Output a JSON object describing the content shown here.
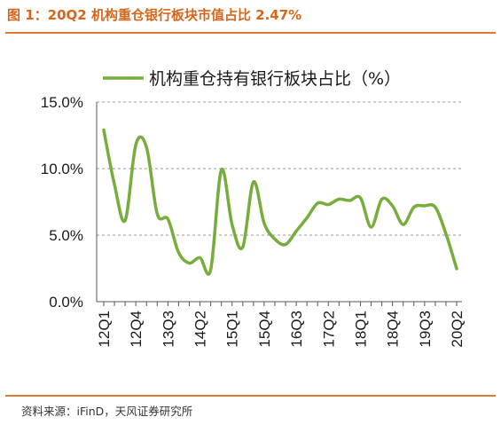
{
  "figure_title": "图 1：20Q2 机构重仓银行板块市值占比 2.47%",
  "source_note": "资料来源：iFinD，天风证券研究所",
  "colors": {
    "line": "#76ad3c",
    "accent": "#e07a2e",
    "title": "#d5661c",
    "grid": "#9a9a9a",
    "axis": "#555555"
  },
  "chart_data": {
    "type": "line",
    "title": "",
    "xlabel": "",
    "ylabel": "",
    "ylim": [
      0,
      15
    ],
    "y_ticks": [
      "0.0%",
      "5.0%",
      "10.0%",
      "15.0%"
    ],
    "grid": true,
    "legend_position": "top",
    "x_tick_labels": [
      "12Q1",
      "12Q4",
      "13Q3",
      "14Q2",
      "15Q1",
      "15Q4",
      "16Q3",
      "17Q2",
      "18Q1",
      "18Q4",
      "19Q3",
      "20Q2"
    ],
    "series": [
      {
        "name": "机构重仓持有银行板块占比（%）",
        "x": [
          "12Q1",
          "12Q2",
          "12Q3",
          "12Q4",
          "13Q1",
          "13Q2",
          "13Q3",
          "13Q4",
          "14Q1",
          "14Q2",
          "14Q3",
          "14Q4",
          "15Q1",
          "15Q2",
          "15Q3",
          "15Q4",
          "16Q1",
          "16Q2",
          "16Q3",
          "16Q4",
          "17Q1",
          "17Q2",
          "17Q3",
          "17Q4",
          "18Q1",
          "18Q2",
          "18Q3",
          "18Q4",
          "19Q1",
          "19Q2",
          "19Q3",
          "19Q4",
          "20Q1",
          "20Q2"
        ],
        "values": [
          12.9,
          8.8,
          6.1,
          11.8,
          11.6,
          6.6,
          6.2,
          3.7,
          2.9,
          3.3,
          2.4,
          9.9,
          5.8,
          4.1,
          9.0,
          5.9,
          4.7,
          4.3,
          5.3,
          6.3,
          7.4,
          7.3,
          7.7,
          7.6,
          7.8,
          5.6,
          7.7,
          7.2,
          5.8,
          7.1,
          7.2,
          7.1,
          5.1,
          2.47
        ]
      }
    ]
  }
}
